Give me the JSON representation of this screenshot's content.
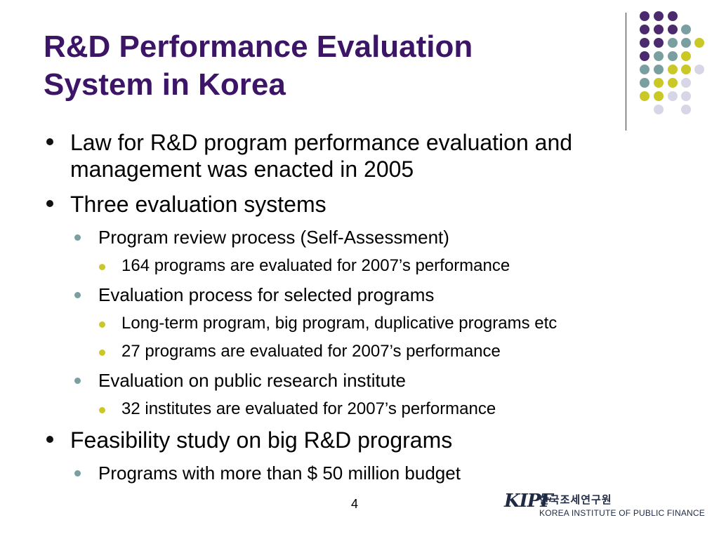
{
  "slide": {
    "title_line1": "R&D Performance Evaluation",
    "title_line2": "System in Korea",
    "page_number": "4"
  },
  "bullets": [
    {
      "level": 1,
      "text": "Law for R&D program performance evaluation and management was enacted in 2005"
    },
    {
      "level": 1,
      "text": "Three evaluation systems"
    },
    {
      "level": 2,
      "text": "Program review process (Self-Assessment)"
    },
    {
      "level": 3,
      "text": "164 programs are evaluated for 2007’s performance"
    },
    {
      "level": 2,
      "text": "Evaluation process for selected programs"
    },
    {
      "level": 3,
      "text": "Long-term program, big program, duplicative programs etc"
    },
    {
      "level": 3,
      "text": "27 programs are evaluated for 2007’s performance"
    },
    {
      "level": 2,
      "text": "Evaluation on public research institute"
    },
    {
      "level": 3,
      "text": "32 institutes are evaluated for 2007’s performance"
    },
    {
      "level": 1,
      "text": "Feasibility study on big R&D programs"
    },
    {
      "level": 2,
      "text": "Programs with more than $ 50 million budget"
    }
  ],
  "logo": {
    "mark": "KIPF",
    "korean_name": "한국조세연구원",
    "english_name": "KOREA INSTITUTE OF PUBLIC FINANCE"
  },
  "colors": {
    "title": "#3d1566",
    "dot_purple": "#4b2a6e",
    "dot_teal": "#7a9fa0",
    "dot_yellow": "#c9c826",
    "dot_lavender": "#d6d6e6"
  }
}
